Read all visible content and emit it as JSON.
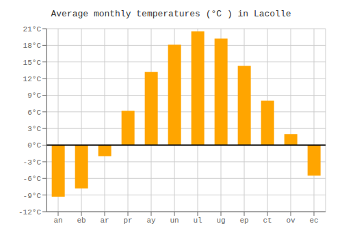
{
  "chart_data": {
    "type": "bar",
    "title": "Average monthly temperatures (°C ) in Lacolle",
    "categories": [
      "an",
      "eb",
      "ar",
      "pr",
      "ay",
      "un",
      "ul",
      "ug",
      "ep",
      "ct",
      "ov",
      "ec"
    ],
    "values": [
      -9.3,
      -7.8,
      -2.0,
      6.2,
      13.2,
      18.1,
      20.5,
      19.2,
      14.3,
      8.0,
      2.0,
      -5.5
    ],
    "color": "#FFA500",
    "ylim": [
      -12,
      21
    ],
    "yticks": [
      {
        "value": -12,
        "label": "-12°C"
      },
      {
        "value": -9,
        "label": "-9°C"
      },
      {
        "value": -6,
        "label": "-6°C"
      },
      {
        "value": -3,
        "label": "-3°C"
      },
      {
        "value": 0,
        "label": "0°C"
      },
      {
        "value": 3,
        "label": "3°C"
      },
      {
        "value": 6,
        "label": "6°C"
      },
      {
        "value": 9,
        "label": "9°C"
      },
      {
        "value": 12,
        "label": "12°C"
      },
      {
        "value": 15,
        "label": "15°C"
      },
      {
        "value": 18,
        "label": "18°C"
      },
      {
        "value": 21,
        "label": "21°C"
      }
    ],
    "grid": true
  }
}
